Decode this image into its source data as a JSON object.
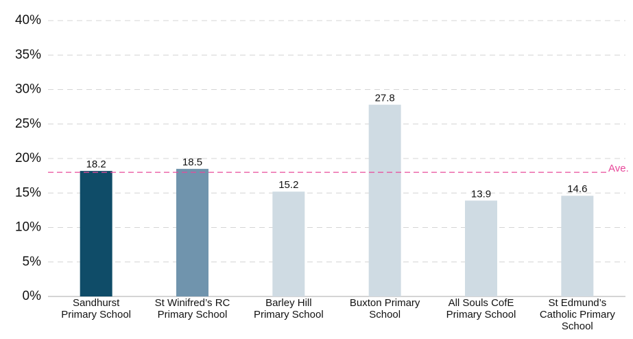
{
  "chart_data": {
    "type": "bar",
    "categories": [
      "Sandhurst Primary School",
      "St Winifred’s RC Primary School",
      "Barley Hill Primary School",
      "Buxton Primary School",
      "All Souls CofE Primary School",
      "St Edmund’s Catholic Primary School"
    ],
    "values": [
      18.2,
      18.5,
      15.2,
      27.8,
      13.9,
      14.6
    ],
    "colors": [
      "#0f4c68",
      "#7094ad",
      "#cfdbe3",
      "#cfdbe3",
      "#cfdbe3",
      "#cfdbe3"
    ],
    "ylim": [
      0,
      40
    ],
    "yticks": [
      {
        "value": 0,
        "label": "0%"
      },
      {
        "value": 5,
        "label": "5%"
      },
      {
        "value": 10,
        "label": "10%"
      },
      {
        "value": 15,
        "label": "15%"
      },
      {
        "value": 20,
        "label": "20%"
      },
      {
        "value": 25,
        "label": "25%"
      },
      {
        "value": 30,
        "label": "30%"
      },
      {
        "value": 35,
        "label": "35%"
      },
      {
        "value": 40,
        "label": "40%"
      }
    ],
    "grid": true,
    "average": {
      "label": "Ave.",
      "value": 18.0,
      "color": "#e8489a"
    }
  }
}
